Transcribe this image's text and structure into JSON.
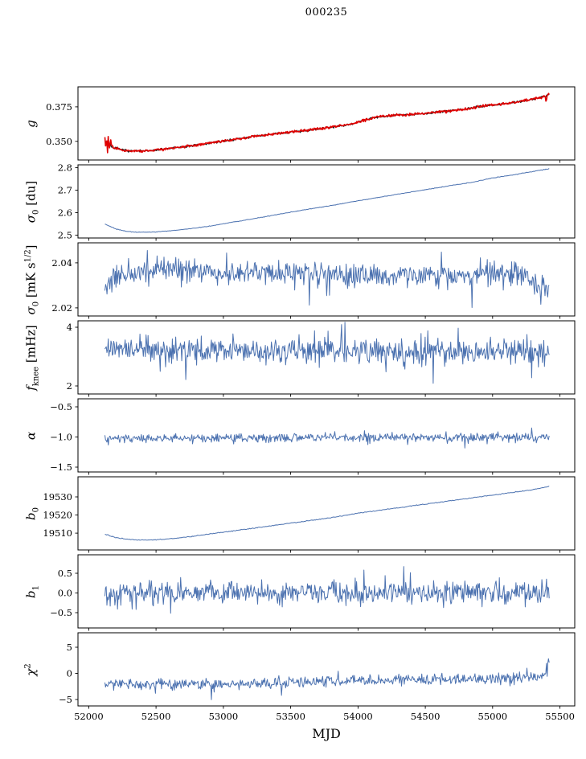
{
  "chart_data": {
    "type": "line",
    "title": "000235",
    "xlabel": "MJD",
    "xlim": [
      51920,
      55610
    ],
    "xticks": [
      52000,
      52500,
      53000,
      53500,
      54000,
      54500,
      55000,
      55500
    ],
    "xtick_labels": [
      "52000",
      "52500",
      "53000",
      "53500",
      "54000",
      "54500",
      "55000",
      "55500"
    ],
    "x_range_data": [
      52120,
      55420
    ],
    "axis_color": "#000000",
    "line_color": "#4c72b0",
    "fit_color": "#e00000",
    "panels": [
      {
        "key": "g",
        "ylabel": {
          "main": "g",
          "sub": "",
          "sup": "",
          "unit": "",
          "unit_sup": "",
          "unit_post": ""
        },
        "ylim": [
          0.3365,
          0.3895
        ],
        "yticks": [
          0.35,
          0.375
        ],
        "ytick_labels": [
          "0.350",
          "0.375"
        ],
        "series": [
          {
            "name": "g-data",
            "color": "#1a1a1a",
            "lw": 1.2,
            "noise": 0.0008,
            "seed": 7,
            "n": 640,
            "keypoints": [
              [
                52120,
                0.3505
              ],
              [
                52180,
                0.3455
              ],
              [
                52260,
                0.3435
              ],
              [
                52380,
                0.3428
              ],
              [
                52500,
                0.3437
              ],
              [
                52650,
                0.3455
              ],
              [
                52800,
                0.3472
              ],
              [
                53000,
                0.3502
              ],
              [
                53200,
                0.3532
              ],
              [
                53400,
                0.3556
              ],
              [
                53600,
                0.3578
              ],
              [
                53800,
                0.3602
              ],
              [
                53950,
                0.3625
              ],
              [
                54050,
                0.3655
              ],
              [
                54150,
                0.3678
              ],
              [
                54250,
                0.3688
              ],
              [
                54380,
                0.3694
              ],
              [
                54500,
                0.3703
              ],
              [
                54650,
                0.3717
              ],
              [
                54800,
                0.3735
              ],
              [
                54950,
                0.3758
              ],
              [
                55100,
                0.3775
              ],
              [
                55250,
                0.3795
              ],
              [
                55350,
                0.3818
              ],
              [
                55420,
                0.3838
              ]
            ]
          },
          {
            "name": "g-fit",
            "color": "#e00000",
            "lw": 1.6,
            "noise": 0.0009,
            "seed": 8,
            "n": 680,
            "start_spike": {
              "until": 52170,
              "amp": 0.004
            },
            "keypoints": [
              [
                52120,
                0.354
              ],
              [
                52126,
                0.3445
              ],
              [
                52132,
                0.3552
              ],
              [
                52138,
                0.3448
              ],
              [
                52146,
                0.353
              ],
              [
                52155,
                0.3452
              ],
              [
                52165,
                0.35
              ],
              [
                52180,
                0.3455
              ],
              [
                52260,
                0.3435
              ],
              [
                52380,
                0.3428
              ],
              [
                52500,
                0.3437
              ],
              [
                52650,
                0.3455
              ],
              [
                52800,
                0.3472
              ],
              [
                53000,
                0.3502
              ],
              [
                53200,
                0.3532
              ],
              [
                53400,
                0.3556
              ],
              [
                53600,
                0.3578
              ],
              [
                53800,
                0.3602
              ],
              [
                53950,
                0.3625
              ],
              [
                54050,
                0.3655
              ],
              [
                54150,
                0.3678
              ],
              [
                54250,
                0.3688
              ],
              [
                54380,
                0.3694
              ],
              [
                54500,
                0.3703
              ],
              [
                54650,
                0.3717
              ],
              [
                54800,
                0.3735
              ],
              [
                54950,
                0.3758
              ],
              [
                55100,
                0.3775
              ],
              [
                55250,
                0.3795
              ],
              [
                55350,
                0.3818
              ],
              [
                55384,
                0.3828
              ],
              [
                55392,
                0.383
              ],
              [
                55398,
                0.3772
              ],
              [
                55406,
                0.3836
              ],
              [
                55420,
                0.3842
              ]
            ]
          }
        ]
      },
      {
        "key": "sigma0_du",
        "ylabel": {
          "main": "σ",
          "sub": "0",
          "sup": "",
          "unit": " [du]",
          "unit_sup": "",
          "unit_post": ""
        },
        "ylim": [
          2.487,
          2.813
        ],
        "yticks": [
          2.5,
          2.6,
          2.7,
          2.8
        ],
        "ytick_labels": [
          "2.5",
          "2.6",
          "2.7",
          "2.8"
        ],
        "series": [
          {
            "name": "sigma0-du",
            "color": "#4c72b0",
            "lw": 1.0,
            "noise": 0.0014,
            "seed": 21,
            "n": 520,
            "keypoints": [
              [
                52120,
                2.549
              ],
              [
                52150,
                2.541
              ],
              [
                52200,
                2.528
              ],
              [
                52280,
                2.5165
              ],
              [
                52360,
                2.5125
              ],
              [
                52450,
                2.5128
              ],
              [
                52550,
                2.5165
              ],
              [
                52650,
                2.522
              ],
              [
                52750,
                2.528
              ],
              [
                52900,
                2.54
              ],
              [
                53050,
                2.5555
              ],
              [
                53200,
                2.5705
              ],
              [
                53350,
                2.586
              ],
              [
                53500,
                2.602
              ],
              [
                53650,
                2.617
              ],
              [
                53800,
                2.6315
              ],
              [
                53950,
                2.6475
              ],
              [
                54100,
                2.6625
              ],
              [
                54250,
                2.6775
              ],
              [
                54400,
                2.6925
              ],
              [
                54550,
                2.707
              ],
              [
                54700,
                2.7215
              ],
              [
                54850,
                2.7355
              ],
              [
                55000,
                2.7545
              ],
              [
                55150,
                2.768
              ],
              [
                55300,
                2.7835
              ],
              [
                55420,
                2.7955
              ]
            ]
          }
        ]
      },
      {
        "key": "sigma0_mK",
        "ylabel": {
          "main": "σ",
          "sub": "0",
          "sup": "",
          "unit": " [mK s",
          "unit_sup": "1/2",
          "unit_post": "]"
        },
        "ylim": [
          2.0164,
          2.0489
        ],
        "yticks": [
          2.02,
          2.04
        ],
        "ytick_labels": [
          "2.02",
          "2.04"
        ],
        "clamp": [
          2.019,
          2.0482
        ],
        "series": [
          {
            "name": "sigma0-mK",
            "color": "#4c72b0",
            "lw": 1.0,
            "noise": 0.0052,
            "seed": 33,
            "n": 640,
            "spike_p": 0.05,
            "keypoints": [
              [
                52120,
                2.028
              ],
              [
                52250,
                2.035
              ],
              [
                52500,
                2.036
              ],
              [
                52700,
                2.0375
              ],
              [
                53000,
                2.035
              ],
              [
                53500,
                2.036
              ],
              [
                54000,
                2.034
              ],
              [
                54500,
                2.0345
              ],
              [
                55000,
                2.035
              ],
              [
                55250,
                2.0335
              ],
              [
                55350,
                2.029
              ],
              [
                55420,
                2.0285
              ]
            ]
          }
        ]
      },
      {
        "key": "f_knee",
        "ylabel": {
          "main": "f",
          "sub": "knee",
          "sup": "",
          "unit": " [mHz]",
          "unit_sup": "",
          "unit_post": ""
        },
        "ylim": [
          1.726,
          4.219
        ],
        "yticks": [
          2,
          4
        ],
        "ytick_labels": [
          "2",
          "4"
        ],
        "clamp": [
          2.05,
          4.17
        ],
        "series": [
          {
            "name": "f-knee",
            "color": "#4c72b0",
            "lw": 1.0,
            "noise": 0.42,
            "seed": 44,
            "n": 660,
            "spike_p": 0.05,
            "keypoints": [
              [
                52120,
                3.3
              ],
              [
                52400,
                3.25
              ],
              [
                53000,
                3.2
              ],
              [
                54000,
                3.2
              ],
              [
                55000,
                3.15
              ],
              [
                55420,
                3.1
              ]
            ]
          }
        ]
      },
      {
        "key": "alpha",
        "ylabel": {
          "main": "α",
          "sub": "",
          "sup": "",
          "unit": "",
          "unit_sup": "",
          "unit_post": ""
        },
        "ylim": [
          -1.58,
          -0.367
        ],
        "yticks": [
          -1.5,
          -1.0,
          -0.5
        ],
        "ytick_labels": [
          "−1.5",
          "−1.0",
          "−0.5"
        ],
        "clamp": [
          -1.25,
          -0.72
        ],
        "series": [
          {
            "name": "alpha",
            "color": "#4c72b0",
            "lw": 1.0,
            "noise": 0.072,
            "seed": 55,
            "n": 660,
            "spike_p": 0.025,
            "keypoints": [
              [
                52120,
                -1.02
              ],
              [
                53500,
                -1.015
              ],
              [
                55420,
                -1.01
              ]
            ]
          }
        ]
      },
      {
        "key": "b0",
        "ylabel": {
          "main": "b",
          "sub": "0",
          "sup": "",
          "unit": "",
          "unit_sup": "",
          "unit_post": ""
        },
        "ylim": [
          19500.7,
          19541.1
        ],
        "yticks": [
          19510,
          19520,
          19530
        ],
        "ytick_labels": [
          "19510",
          "19520",
          "19530"
        ],
        "series": [
          {
            "name": "b0",
            "color": "#4c72b0",
            "lw": 1.0,
            "noise": 0.22,
            "seed": 66,
            "n": 520,
            "keypoints": [
              [
                52120,
                19509.5
              ],
              [
                52200,
                19507.5
              ],
              [
                52350,
                19506.2
              ],
              [
                52500,
                19506.3
              ],
              [
                52650,
                19507.2
              ],
              [
                52800,
                19508.5
              ],
              [
                53000,
                19510.5
              ],
              [
                53200,
                19512.5
              ],
              [
                53400,
                19514.5
              ],
              [
                53600,
                19516.5
              ],
              [
                53800,
                19518.5
              ],
              [
                54000,
                19521.0
              ],
              [
                54200,
                19523.0
              ],
              [
                54400,
                19525.0
              ],
              [
                54600,
                19527.0
              ],
              [
                54800,
                19529.0
              ],
              [
                55000,
                19531.0
              ],
              [
                55150,
                19532.5
              ],
              [
                55300,
                19534.0
              ],
              [
                55420,
                19535.8
              ]
            ]
          }
        ]
      },
      {
        "key": "b1",
        "ylabel": {
          "main": "b",
          "sub": "1",
          "sup": "",
          "unit": "",
          "unit_sup": "",
          "unit_post": ""
        },
        "ylim": [
          -0.888,
          0.969
        ],
        "yticks": [
          -0.5,
          0.0,
          0.5
        ],
        "ytick_labels": [
          "−0.5",
          "0.0",
          "0.5"
        ],
        "clamp": [
          -0.8,
          0.7
        ],
        "series": [
          {
            "name": "b1",
            "color": "#4c72b0",
            "lw": 1.0,
            "noise": 0.27,
            "seed": 77,
            "n": 670,
            "spike_p": 0.06,
            "keypoints": [
              [
                52120,
                0.0
              ],
              [
                55420,
                0.0
              ]
            ]
          }
        ]
      },
      {
        "key": "chi2",
        "ylabel": {
          "main": "χ",
          "sub": "",
          "sup": "2",
          "unit": "",
          "unit_sup": "",
          "unit_post": ""
        },
        "ylim": [
          -6.23,
          7.77
        ],
        "yticks": [
          -5,
          0,
          5
        ],
        "ytick_labels": [
          "−5",
          "0",
          "5"
        ],
        "clamp": [
          -5.2,
          3.5
        ],
        "series": [
          {
            "name": "chi2",
            "color": "#4c72b0",
            "lw": 1.0,
            "noise": 1.0,
            "seed": 88,
            "n": 660,
            "spike_p": 0.04,
            "keypoints": [
              [
                52120,
                -2.0
              ],
              [
                52600,
                -2.1
              ],
              [
                53000,
                -2.0
              ],
              [
                53400,
                -1.8
              ],
              [
                53800,
                -1.5
              ],
              [
                54200,
                -1.3
              ],
              [
                54600,
                -1.2
              ],
              [
                55000,
                -1.0
              ],
              [
                55250,
                -0.9
              ],
              [
                55380,
                -0.6
              ],
              [
                55400,
                1.0
              ],
              [
                55420,
                2.4
              ]
            ]
          }
        ]
      }
    ]
  }
}
